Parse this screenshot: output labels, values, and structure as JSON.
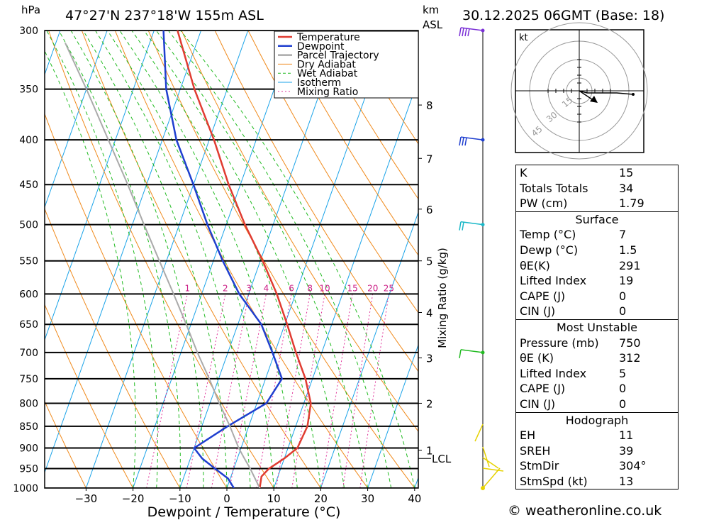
{
  "header": {
    "pressure_unit": "hPa",
    "location": "47°27'N  237°18'W  155m  ASL",
    "alt_unit": "km",
    "alt_unit2": "ASL",
    "datetime": "30.12.2025  06GMT  (Base: 18)"
  },
  "chart_data": {
    "type": "line",
    "title": "47°27'N  237°18'W  155m  ASL",
    "xlabel": "Dewpoint / Temperature (°C)",
    "ylabel": "hPa",
    "y2label": "Mixing Ratio (g/kg)",
    "x_ticks": [
      -30,
      -20,
      -10,
      0,
      10,
      20,
      30,
      40
    ],
    "p_ticks": [
      300,
      350,
      400,
      450,
      500,
      550,
      600,
      650,
      700,
      750,
      800,
      850,
      900,
      950,
      1000
    ],
    "km_ticks": [
      {
        "label": "8",
        "p": 365
      },
      {
        "label": "7",
        "p": 420
      },
      {
        "label": "6",
        "p": 480
      },
      {
        "label": "5",
        "p": 550
      },
      {
        "label": "4",
        "p": 630
      },
      {
        "label": "3",
        "p": 710
      },
      {
        "label": "2",
        "p": 800
      },
      {
        "label": "1",
        "p": 905
      }
    ],
    "lcl_label": "LCL",
    "lcl_p": 925,
    "mixing_ratio_labels": [
      "1",
      "2",
      "3",
      "4",
      "6",
      "8",
      "10",
      "15",
      "20",
      "25"
    ],
    "legend": [
      "Temperature",
      "Dewpoint",
      "Parcel Trajectory",
      "Dry Adiabat",
      "Wet Adiabat",
      "Isotherm",
      "Mixing Ratio"
    ],
    "series": [
      {
        "name": "Temperature",
        "color": "#e03c31",
        "points": [
          [
            1000,
            7
          ],
          [
            970,
            6.5
          ],
          [
            950,
            7.5
          ],
          [
            925,
            10
          ],
          [
            900,
            12
          ],
          [
            850,
            12.5
          ],
          [
            800,
            11.5
          ],
          [
            750,
            8.5
          ],
          [
            700,
            4.5
          ],
          [
            650,
            0.5
          ],
          [
            600,
            -4
          ],
          [
            550,
            -9.5
          ],
          [
            500,
            -16
          ],
          [
            450,
            -22.5
          ],
          [
            400,
            -29
          ],
          [
            350,
            -37
          ],
          [
            300,
            -45
          ]
        ]
      },
      {
        "name": "Dewpoint",
        "color": "#1f3fcf",
        "points": [
          [
            1000,
            1.5
          ],
          [
            975,
            -0.5
          ],
          [
            950,
            -4
          ],
          [
            925,
            -7.5
          ],
          [
            900,
            -10
          ],
          [
            850,
            -4.5
          ],
          [
            800,
            2
          ],
          [
            750,
            3.5
          ],
          [
            700,
            -0.5
          ],
          [
            650,
            -5
          ],
          [
            600,
            -12
          ],
          [
            550,
            -18
          ],
          [
            500,
            -24
          ],
          [
            450,
            -30
          ],
          [
            400,
            -37
          ],
          [
            350,
            -43
          ],
          [
            300,
            -48
          ]
        ]
      },
      {
        "name": "Parcel Trajectory",
        "color": "#aaaaaa",
        "points": [
          [
            1000,
            7
          ],
          [
            950,
            3.5
          ],
          [
            925,
            1.5
          ],
          [
            900,
            -0.5
          ],
          [
            850,
            -4
          ],
          [
            800,
            -8
          ],
          [
            750,
            -12
          ],
          [
            700,
            -16.5
          ],
          [
            650,
            -21
          ],
          [
            600,
            -26
          ],
          [
            550,
            -31.5
          ],
          [
            500,
            -37.5
          ],
          [
            450,
            -44
          ],
          [
            400,
            -51.5
          ],
          [
            350,
            -60
          ],
          [
            310,
            -68
          ]
        ]
      }
    ]
  },
  "hodograph": {
    "unit": "kt",
    "ring_labels": [
      "15",
      "30",
      "45"
    ]
  },
  "indices": {
    "top": [
      {
        "label": "K",
        "value": "15"
      },
      {
        "label": "Totals Totals",
        "value": "34"
      },
      {
        "label": "PW (cm)",
        "value": "1.79"
      }
    ],
    "surface_title": "Surface",
    "surface": [
      {
        "label": "Temp (°C)",
        "value": "7"
      },
      {
        "label": "Dewp (°C)",
        "value": "1.5"
      },
      {
        "label": "θE(K)",
        "value": "291"
      },
      {
        "label": "Lifted Index",
        "value": "19"
      },
      {
        "label": "CAPE (J)",
        "value": "0"
      },
      {
        "label": "CIN (J)",
        "value": "0"
      }
    ],
    "unstable_title": "Most Unstable",
    "unstable": [
      {
        "label": "Pressure (mb)",
        "value": "750"
      },
      {
        "label": "θE (K)",
        "value": "312"
      },
      {
        "label": "Lifted Index",
        "value": "5"
      },
      {
        "label": "CAPE (J)",
        "value": "0"
      },
      {
        "label": "CIN (J)",
        "value": "0"
      }
    ],
    "hodo_title": "Hodograph",
    "hodo": [
      {
        "label": "EH",
        "value": "11"
      },
      {
        "label": "SREH",
        "value": "39"
      },
      {
        "label": "StmDir",
        "value": "304°"
      },
      {
        "label": "StmSpd (kt)",
        "value": "13"
      }
    ]
  },
  "footer": "© weatheronline.co.uk"
}
